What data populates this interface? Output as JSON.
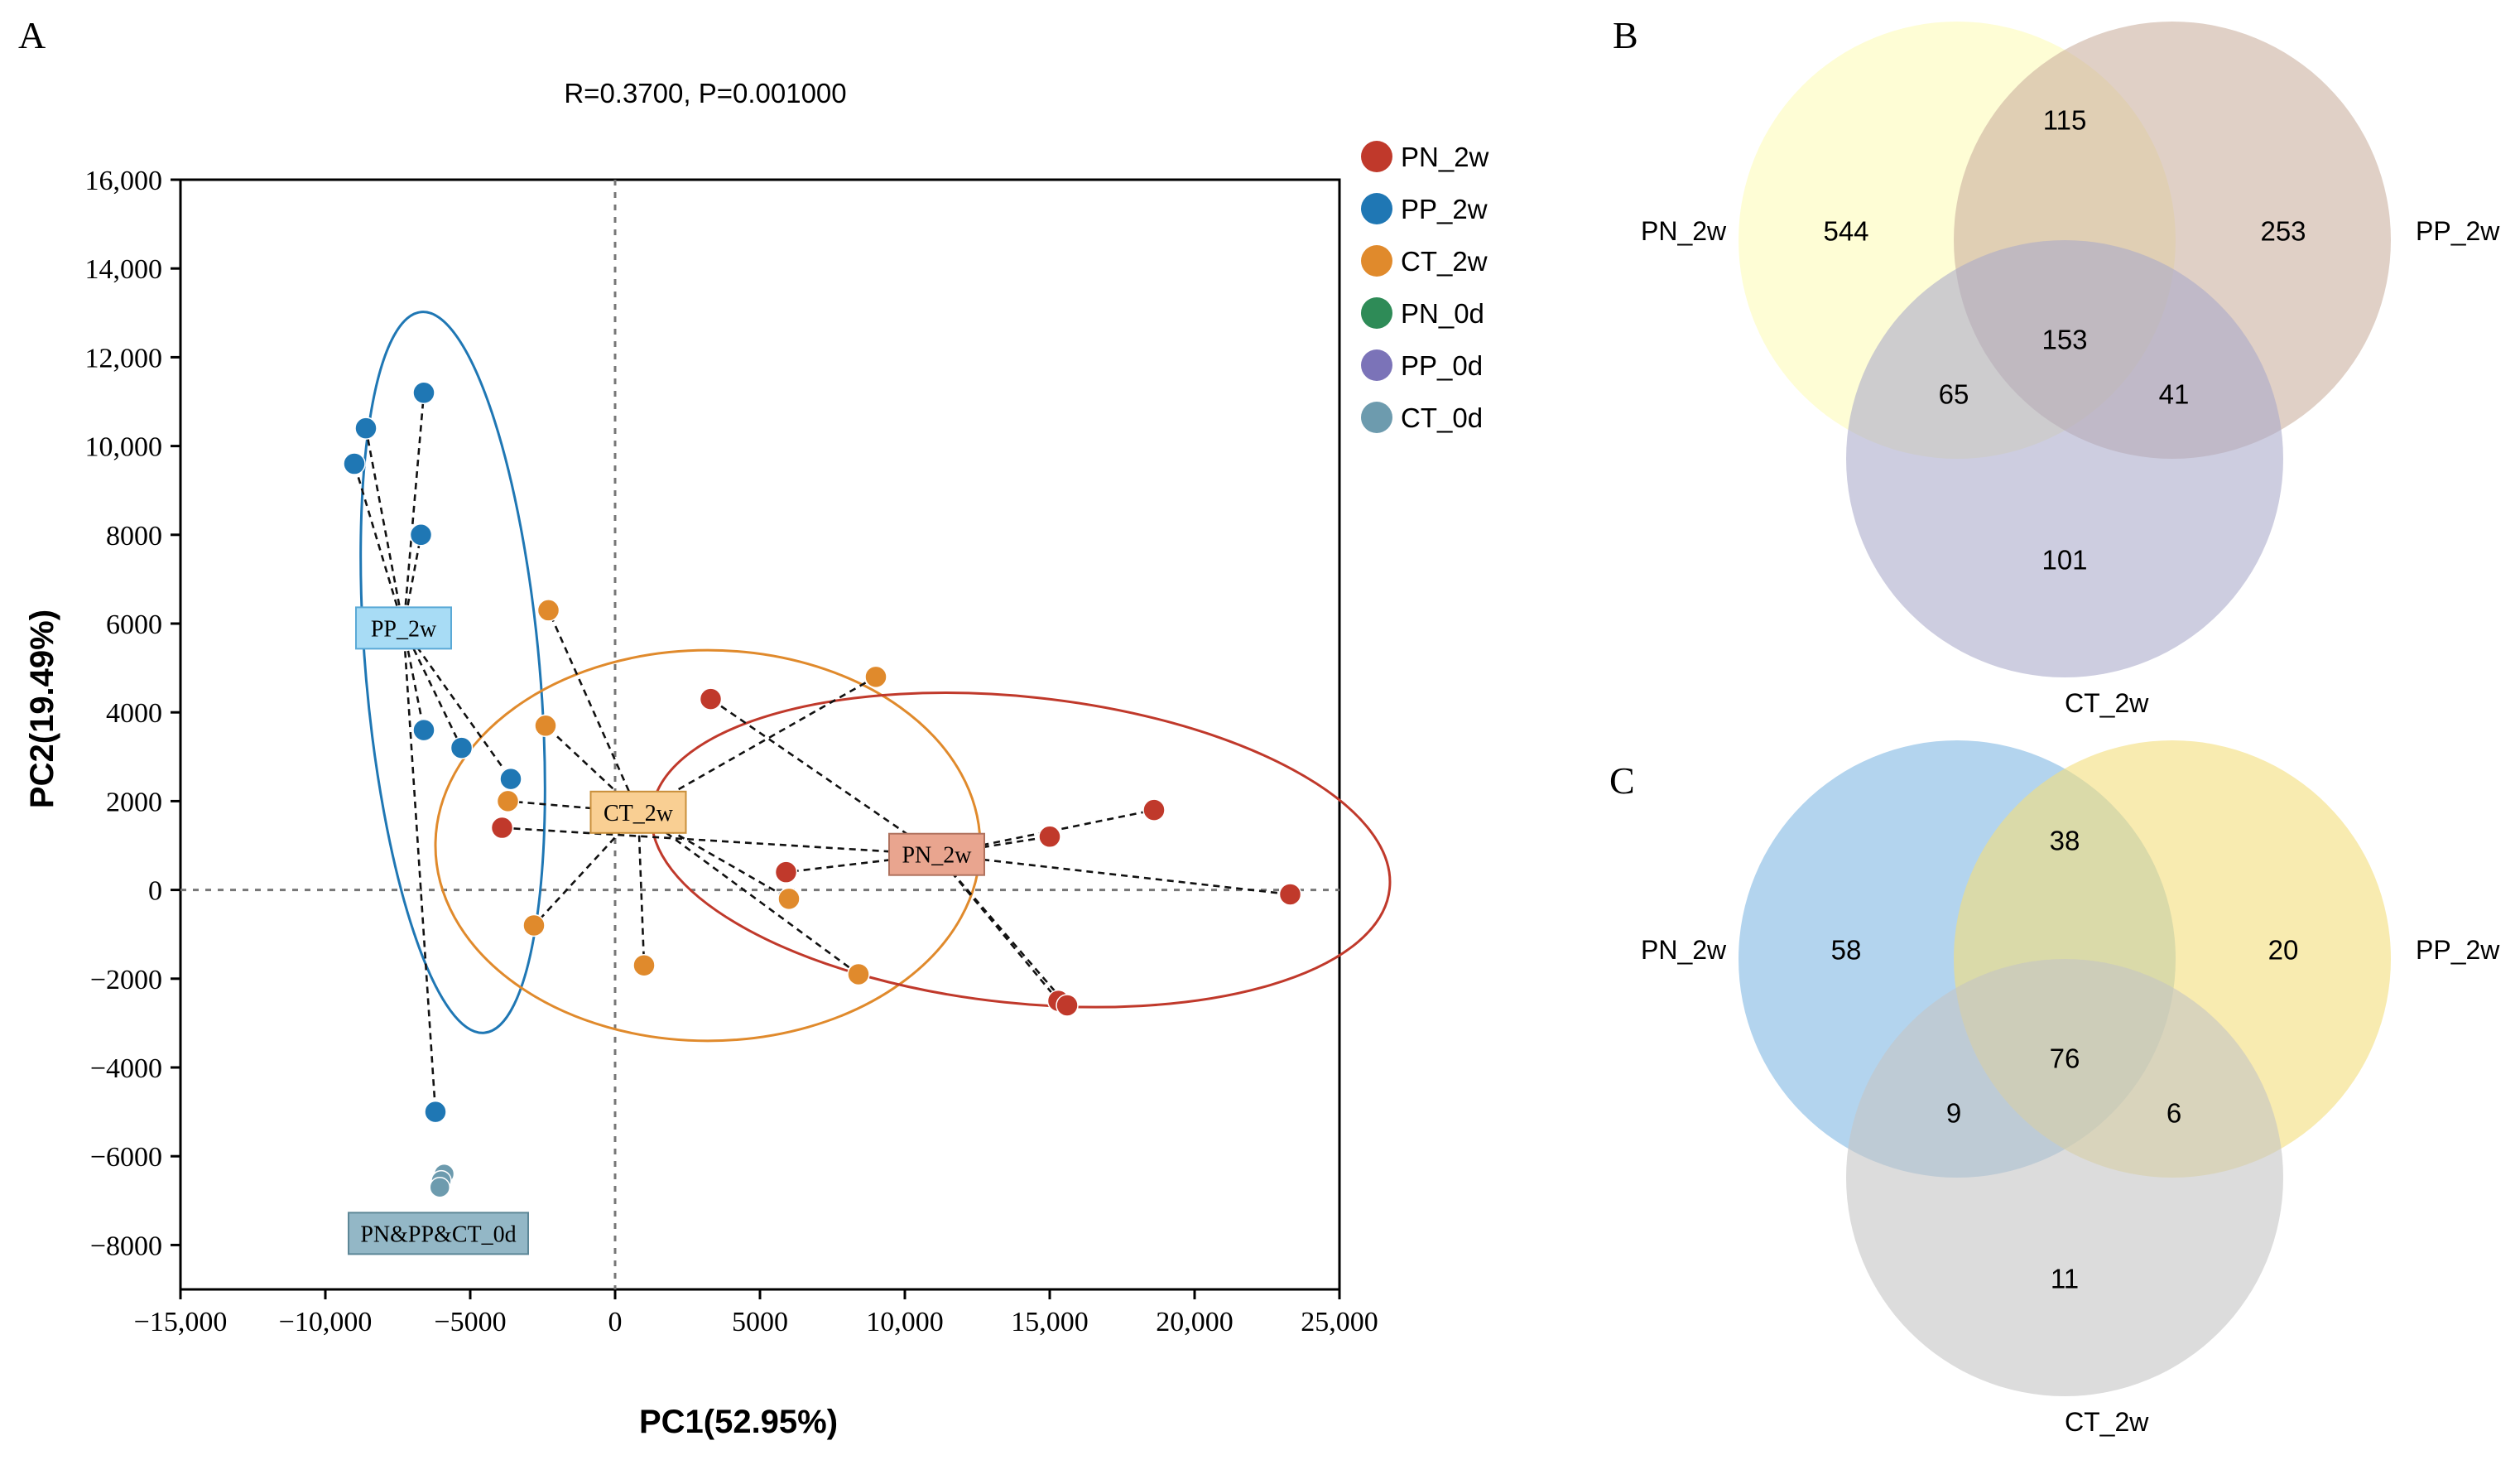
{
  "panels": {
    "a": {
      "letter": "A",
      "stats": "R=0.3700, P=0.001000",
      "xlabel": "PC1(52.95%)",
      "ylabel": "PC2(19.49%)",
      "x_ticks": [
        {
          "v": -15000,
          "label": "−15,000"
        },
        {
          "v": -10000,
          "label": "−10,000"
        },
        {
          "v": -5000,
          "label": "−5000"
        },
        {
          "v": 0,
          "label": "0"
        },
        {
          "v": 5000,
          "label": "5000"
        },
        {
          "v": 10000,
          "label": "10,000"
        },
        {
          "v": 15000,
          "label": "15,000"
        },
        {
          "v": 20000,
          "label": "20,000"
        },
        {
          "v": 25000,
          "label": "25,000"
        }
      ],
      "y_ticks": [
        {
          "v": 16000,
          "label": "16,000"
        },
        {
          "v": 14000,
          "label": "14,000"
        },
        {
          "v": 12000,
          "label": "12,000"
        },
        {
          "v": 10000,
          "label": "10,000"
        },
        {
          "v": 8000,
          "label": "8000"
        },
        {
          "v": 6000,
          "label": "6000"
        },
        {
          "v": 4000,
          "label": "4000"
        },
        {
          "v": 2000,
          "label": "2000"
        },
        {
          "v": 0,
          "label": "0"
        },
        {
          "v": -2000,
          "label": "−2000"
        },
        {
          "v": -4000,
          "label": "−4000"
        },
        {
          "v": -6000,
          "label": "−6000"
        },
        {
          "v": -8000,
          "label": "−8000"
        }
      ],
      "legend": [
        {
          "name": "PN_2w",
          "color": "#c0392b"
        },
        {
          "name": "PP_2w",
          "color": "#1f77b4"
        },
        {
          "name": "CT_2w",
          "color": "#e08a2c"
        },
        {
          "name": "PN_0d",
          "color": "#2e8b57"
        },
        {
          "name": "PP_0d",
          "color": "#7b73b8"
        },
        {
          "name": "CT_0d",
          "color": "#6d9bae"
        }
      ]
    },
    "b": {
      "letter": "B",
      "labels": {
        "left": "PN_2w",
        "right": "PP_2w",
        "bottom": "CT_2w"
      },
      "colors": {
        "left": "#fdfcb6",
        "right": "#c9ae9c",
        "bottom": "#a9a9c9"
      },
      "counts": {
        "only_left": "544",
        "left_right": "115",
        "only_right": "253",
        "all": "153",
        "left_bottom": "65",
        "right_bottom": "41",
        "only_bottom": "101"
      }
    },
    "c": {
      "letter": "C",
      "labels": {
        "left": "PN_2w",
        "right": "PP_2w",
        "bottom": "CT_2w"
      },
      "colors": {
        "left": "#80b7e3",
        "right": "#f4dd7c",
        "bottom": "#c4c4c4"
      },
      "counts": {
        "only_left": "58",
        "left_right": "38",
        "only_right": "20",
        "all": "76",
        "left_bottom": "9",
        "right_bottom": "6",
        "only_bottom": "11"
      }
    }
  },
  "chart_data": [
    {
      "type": "scatter",
      "title": "R=0.3700, P=0.001000",
      "xlabel": "PC1(52.95%)",
      "ylabel": "PC2(19.49%)",
      "xlim": [
        -15000,
        25000
      ],
      "ylim": [
        -9000,
        16000
      ],
      "grid": false,
      "reference_lines": {
        "x": 0,
        "y": 0
      },
      "legend_position": "right",
      "series": [
        {
          "name": "PP_2w",
          "color": "#1f77b4",
          "label": "PP_2w",
          "centroid": [
            -7300,
            5900
          ],
          "ellipse": {
            "cx": -5600,
            "cy": 4900,
            "rx": 3000,
            "ry": 8150,
            "rotate_deg": -5
          },
          "points": [
            [
              -6600,
              11200
            ],
            [
              -8600,
              10400
            ],
            [
              -9000,
              9600
            ],
            [
              -6700,
              8000
            ],
            [
              -6600,
              3600
            ],
            [
              -5300,
              3200
            ],
            [
              -3600,
              2500
            ],
            [
              -6200,
              -5000
            ]
          ]
        },
        {
          "name": "CT_2w",
          "color": "#e08a2c",
          "label": "CT_2w",
          "centroid": [
            800,
            1750
          ],
          "ellipse": {
            "cx": 3200,
            "cy": 1000,
            "rx": 9400,
            "ry": 4400,
            "rotate_deg": 0
          },
          "points": [
            [
              -2300,
              6300
            ],
            [
              9000,
              4800
            ],
            [
              -2400,
              3700
            ],
            [
              -3700,
              2000
            ],
            [
              6000,
              -200
            ],
            [
              -2800,
              -800
            ],
            [
              1000,
              -1700
            ],
            [
              8400,
              -1900
            ]
          ]
        },
        {
          "name": "PN_2w",
          "color": "#c0392b",
          "label": "PN_2w",
          "centroid": [
            11100,
            800
          ],
          "ellipse": {
            "cx": 14000,
            "cy": 900,
            "rx": 12800,
            "ry": 3450,
            "rotate_deg": 6
          },
          "points": [
            [
              3300,
              4300
            ],
            [
              18600,
              1800
            ],
            [
              15000,
              1200
            ],
            [
              -3900,
              1400
            ],
            [
              5900,
              400
            ],
            [
              23300,
              -100
            ],
            [
              15300,
              -2500
            ],
            [
              15600,
              -2600
            ]
          ]
        },
        {
          "name": "CT_0d",
          "color": "#6d9bae",
          "label": "PN&PP&CT_0d",
          "centroid": [
            -6100,
            -6600
          ],
          "points": [
            [
              -5900,
              -6400
            ],
            [
              -6000,
              -6550
            ],
            [
              -6050,
              -6700
            ]
          ]
        },
        {
          "name": "PN_0d",
          "color": "#2e8b57",
          "points": []
        },
        {
          "name": "PP_0d",
          "color": "#7b73b8",
          "points": []
        }
      ]
    },
    {
      "type": "venn",
      "panel": "B",
      "sets": [
        "PN_2w",
        "PP_2w",
        "CT_2w"
      ],
      "counts": {
        "PN_2w": 544,
        "PP_2w": 253,
        "CT_2w": 101,
        "PN_2w&PP_2w": 115,
        "PN_2w&CT_2w": 65,
        "PP_2w&CT_2w": 41,
        "PN_2w&PP_2w&CT_2w": 153
      }
    },
    {
      "type": "venn",
      "panel": "C",
      "sets": [
        "PN_2w",
        "PP_2w",
        "CT_2w"
      ],
      "counts": {
        "PN_2w": 58,
        "PP_2w": 20,
        "CT_2w": 11,
        "PN_2w&PP_2w": 38,
        "PN_2w&CT_2w": 9,
        "PP_2w&CT_2w": 6,
        "PN_2w&PP_2w&CT_2w": 76
      }
    }
  ]
}
